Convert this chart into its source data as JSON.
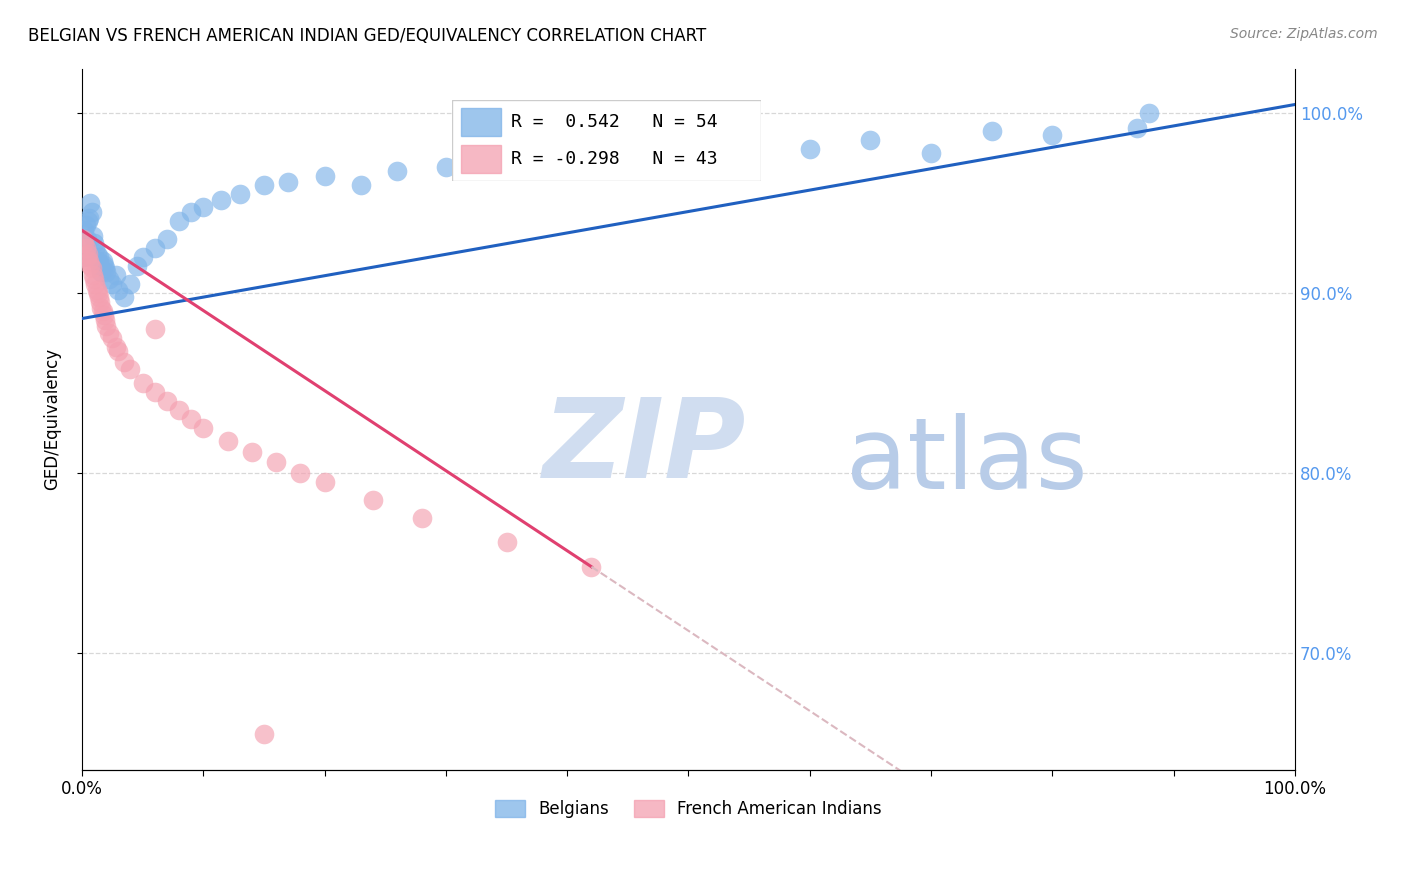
{
  "title": "BELGIAN VS FRENCH AMERICAN INDIAN GED/EQUIVALENCY CORRELATION CHART",
  "source": "Source: ZipAtlas.com",
  "ylabel": "GED/Equivalency",
  "xlim": [
    0.0,
    1.0
  ],
  "ylim": [
    0.635,
    1.025
  ],
  "right_yticks": [
    1.0,
    0.9,
    0.8,
    0.7
  ],
  "right_yticklabels": [
    "100.0%",
    "90.0%",
    "80.0%",
    "70.0%"
  ],
  "belgian_R": 0.542,
  "belgian_N": 54,
  "french_R": -0.298,
  "french_N": 43,
  "belgian_color": "#7eb3e8",
  "french_color": "#f4a0b0",
  "belgian_line_color": "#2060c0",
  "french_line_color": "#e04070",
  "french_dashed_color": "#dbb8c0",
  "watermark_zip": "ZIP",
  "watermark_atlas": "atlas",
  "watermark_color_zip": "#d0ddf0",
  "watermark_color_atlas": "#b8cce8",
  "legend_label_belgian": "Belgians",
  "legend_label_french": "French American Indians",
  "blue_label_color": "#5599ee",
  "grid_color": "#d8d8d8",
  "belgian_x": [
    0.001,
    0.002,
    0.003,
    0.004,
    0.005,
    0.006,
    0.007,
    0.008,
    0.009,
    0.01,
    0.011,
    0.012,
    0.013,
    0.014,
    0.015,
    0.016,
    0.017,
    0.018,
    0.019,
    0.02,
    0.022,
    0.025,
    0.028,
    0.03,
    0.035,
    0.04,
    0.045,
    0.05,
    0.06,
    0.07,
    0.08,
    0.09,
    0.1,
    0.115,
    0.13,
    0.15,
    0.17,
    0.2,
    0.23,
    0.26,
    0.3,
    0.34,
    0.38,
    0.42,
    0.46,
    0.5,
    0.55,
    0.6,
    0.65,
    0.7,
    0.75,
    0.8,
    0.87,
    0.88
  ],
  "belgian_y": [
    0.92,
    0.935,
    0.938,
    0.93,
    0.94,
    0.942,
    0.95,
    0.945,
    0.932,
    0.928,
    0.925,
    0.922,
    0.918,
    0.92,
    0.915,
    0.912,
    0.918,
    0.916,
    0.914,
    0.912,
    0.908,
    0.905,
    0.91,
    0.902,
    0.898,
    0.905,
    0.915,
    0.92,
    0.925,
    0.93,
    0.94,
    0.945,
    0.948,
    0.952,
    0.955,
    0.96,
    0.962,
    0.965,
    0.96,
    0.968,
    0.97,
    0.972,
    0.975,
    0.978,
    0.98,
    0.982,
    0.985,
    0.98,
    0.985,
    0.978,
    0.99,
    0.988,
    0.992,
    1.0
  ],
  "french_x": [
    0.001,
    0.002,
    0.003,
    0.004,
    0.005,
    0.006,
    0.007,
    0.008,
    0.009,
    0.01,
    0.011,
    0.012,
    0.013,
    0.014,
    0.015,
    0.016,
    0.017,
    0.018,
    0.019,
    0.02,
    0.022,
    0.025,
    0.028,
    0.03,
    0.035,
    0.04,
    0.05,
    0.06,
    0.07,
    0.08,
    0.09,
    0.1,
    0.12,
    0.14,
    0.16,
    0.18,
    0.2,
    0.24,
    0.28,
    0.35,
    0.42,
    0.06,
    0.15
  ],
  "french_y": [
    0.93,
    0.928,
    0.925,
    0.92,
    0.922,
    0.918,
    0.916,
    0.914,
    0.91,
    0.908,
    0.905,
    0.902,
    0.9,
    0.898,
    0.895,
    0.892,
    0.89,
    0.888,
    0.885,
    0.882,
    0.878,
    0.875,
    0.87,
    0.868,
    0.862,
    0.858,
    0.85,
    0.845,
    0.84,
    0.835,
    0.83,
    0.825,
    0.818,
    0.812,
    0.806,
    0.8,
    0.795,
    0.785,
    0.775,
    0.762,
    0.748,
    0.88,
    0.655
  ]
}
